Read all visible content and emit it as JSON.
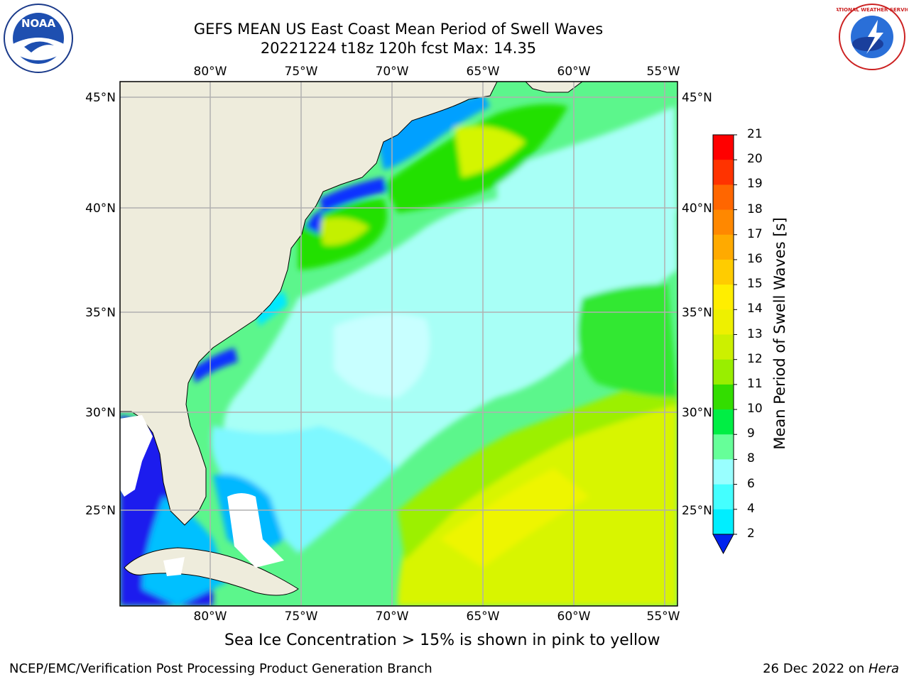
{
  "header": {
    "title_line1": "GEFS MEAN US East Coast Mean Period of Swell Waves",
    "title_line2": "20221224 t18z 120h fcst   Max: 14.35"
  },
  "logos": {
    "left": "NOAA",
    "right_text": "NATIONAL WEATHER SERVICE"
  },
  "map": {
    "lon_labels": [
      "80°W",
      "75°W",
      "70°W",
      "65°W",
      "60°W",
      "55°W"
    ],
    "lat_labels": [
      "45°N",
      "40°N",
      "35°N",
      "30°N",
      "25°N"
    ],
    "colors": {
      "land": "#eeecdc",
      "ocean_base": "#5cf68c",
      "grid": "#b0b0b0"
    }
  },
  "colorbar": {
    "title": "Mean Period of Swell Waves [s]",
    "ticks": [
      "21",
      "20",
      "19",
      "18",
      "17",
      "16",
      "15",
      "14",
      "13",
      "12",
      "11",
      "10",
      "9",
      "8",
      "6",
      "4",
      "2"
    ],
    "colors": [
      "#ff0000",
      "#ff3300",
      "#ff6600",
      "#ff8800",
      "#ffaa00",
      "#ffcc00",
      "#ffee00",
      "#eef000",
      "#ccf000",
      "#99ee00",
      "#33dd00",
      "#00ee44",
      "#66ff99",
      "#99ffff",
      "#44ffff",
      "#00eeff",
      "#0088ff",
      "#0022ee"
    ]
  },
  "caption": "Sea Ice Concentration > 15% is shown in pink to yellow",
  "footer": {
    "left": "NCEP/EMC/Verification Post Processing Product Generation Branch",
    "right_date": "26 Dec 2022 on ",
    "right_machine": "Hera"
  }
}
